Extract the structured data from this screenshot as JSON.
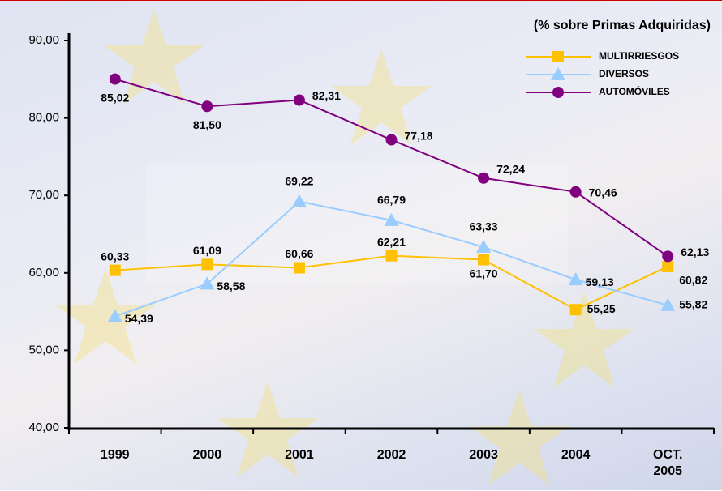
{
  "chart_data": {
    "type": "line",
    "title": "(% sobre Primas Adquiridas)",
    "categories": [
      "1999",
      "2000",
      "2001",
      "2002",
      "2003",
      "2004",
      "OCT. 2005"
    ],
    "series": [
      {
        "name": "MULTIRRIESGOS",
        "color": "#ffc000",
        "marker": "square",
        "values": [
          60.33,
          61.09,
          60.66,
          62.21,
          61.7,
          55.25,
          60.82
        ],
        "value_labels": [
          "60,33",
          "61,09",
          "60,66",
          "62,21",
          "61,70",
          "55,25",
          "60,82"
        ]
      },
      {
        "name": "DIVERSOS",
        "color": "#99ccff",
        "marker": "triangle",
        "values": [
          54.39,
          58.58,
          69.22,
          66.79,
          63.33,
          59.13,
          55.82
        ],
        "value_labels": [
          "54,39",
          "58,58",
          "69,22",
          "66,79",
          "63,33",
          "59,13",
          "55,82"
        ]
      },
      {
        "name": "AUTOMÓVILES",
        "color": "#800080",
        "marker": "circle",
        "values": [
          85.02,
          81.5,
          82.31,
          77.18,
          72.24,
          70.46,
          62.13
        ],
        "value_labels": [
          "85,02",
          "81,50",
          "82,31",
          "77,18",
          "72,24",
          "70,46",
          "62,13"
        ]
      }
    ],
    "ylim": [
      40,
      90
    ],
    "yticks": [
      {
        "value": 40,
        "label": "40,00"
      },
      {
        "value": 50,
        "label": "50,00"
      },
      {
        "value": 60,
        "label": "60,00"
      },
      {
        "value": 70,
        "label": "70,00"
      },
      {
        "value": 80,
        "label": "80,00"
      },
      {
        "value": 90,
        "label": "90,00"
      }
    ],
    "legend": "top-right"
  }
}
